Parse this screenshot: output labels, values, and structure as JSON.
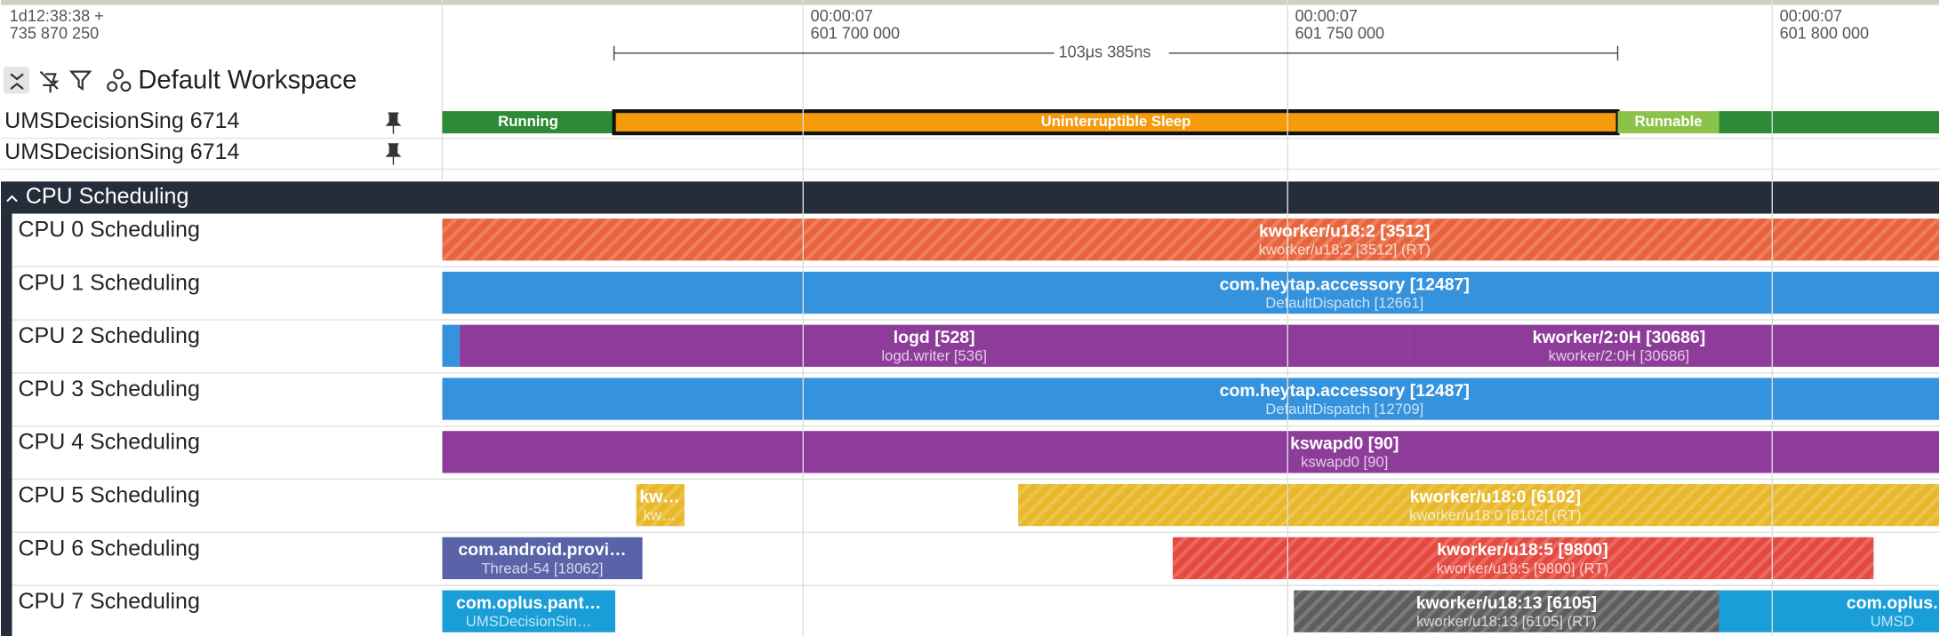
{
  "header": {
    "time_line1": "1d12:38:38 +",
    "time_line2": "735 870 250",
    "workspace": "Default Workspace"
  },
  "ruler": {
    "ticks": [
      {
        "time": "00:00:07",
        "ns": "601 700 000"
      },
      {
        "time": "00:00:07",
        "ns": "601 750 000"
      },
      {
        "time": "00:00:07",
        "ns": "601 800 000"
      }
    ],
    "measurement": "103μs 385ns"
  },
  "thread_tracks": [
    {
      "name": "UMSDecisionSing 6714",
      "slices": [
        {
          "label": "Running"
        },
        {
          "label": "Uninterruptible Sleep"
        },
        {
          "label": "Runnable"
        },
        {
          "label": ""
        }
      ]
    },
    {
      "name": "UMSDecisionSing 6714",
      "slices": []
    }
  ],
  "group": {
    "title": "CPU Scheduling"
  },
  "cpu_tracks": [
    {
      "name": "CPU 0 Scheduling",
      "slices": [
        {
          "title": "kworker/u18:2 [3512]",
          "subtitle": "kworker/u18:2 [3512] (RT)"
        }
      ]
    },
    {
      "name": "CPU 1 Scheduling",
      "slices": [
        {
          "title": "com.heytap.accessory [12487]",
          "subtitle": "DefaultDispatch [12661]"
        }
      ]
    },
    {
      "name": "CPU 2 Scheduling",
      "slices": [
        {
          "title": "logd [528]",
          "subtitle": "logd.writer [536]"
        },
        {
          "title": "kworker/2:0H [30686]",
          "subtitle": "kworker/2:0H [30686]"
        }
      ]
    },
    {
      "name": "CPU 3 Scheduling",
      "slices": [
        {
          "title": "com.heytap.accessory [12487]",
          "subtitle": "DefaultDispatch [12709]"
        }
      ]
    },
    {
      "name": "CPU 4 Scheduling",
      "slices": [
        {
          "title": "kswapd0 [90]",
          "subtitle": "kswapd0 [90]"
        }
      ]
    },
    {
      "name": "CPU 5 Scheduling",
      "slices": [
        {
          "title": "kw…",
          "subtitle": "kw…"
        },
        {
          "title": "kworker/u18:0 [6102]",
          "subtitle": "kworker/u18:0 [6102] (RT)"
        }
      ]
    },
    {
      "name": "CPU 6 Scheduling",
      "slices": [
        {
          "title": "com.android.provi…",
          "subtitle": "Thread-54 [18062]"
        },
        {
          "title": "kworker/u18:5 [9800]",
          "subtitle": "kworker/u18:5 [9800] (RT)"
        }
      ]
    },
    {
      "name": "CPU 7 Scheduling",
      "slices": [
        {
          "title": "com.oplus.pant…",
          "subtitle": "UMSDecisionSin…"
        },
        {
          "title": "kworker/u18:13 [6105]",
          "subtitle": "kworker/u18:13 [6105] (RT)"
        },
        {
          "title": "com.oplus.",
          "subtitle": "UMSD"
        }
      ]
    }
  ]
}
